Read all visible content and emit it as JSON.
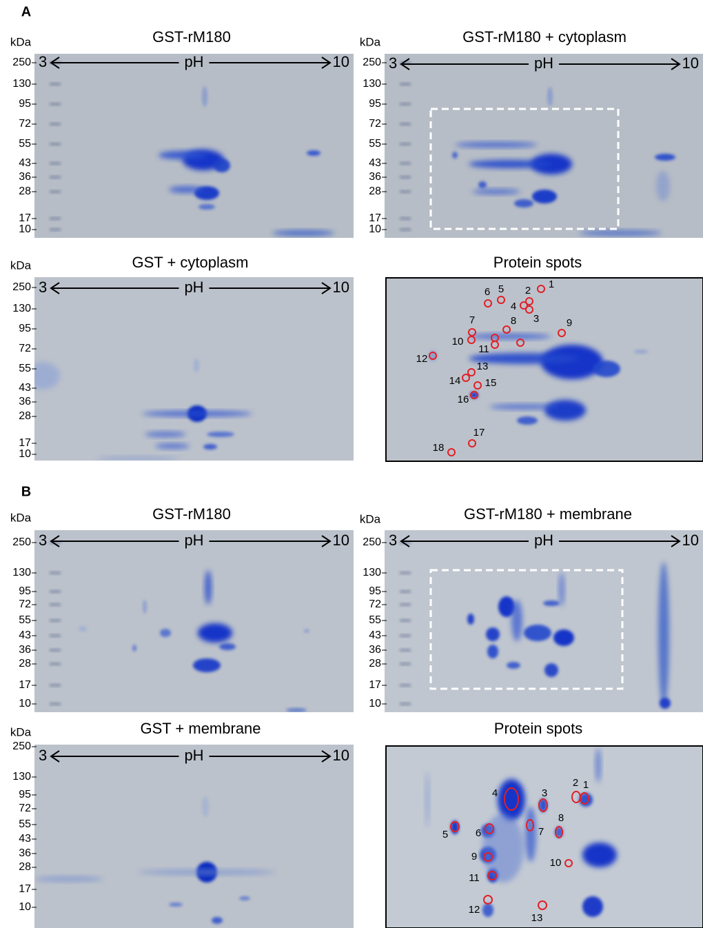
{
  "sections": [
    {
      "label": "A",
      "panels": [
        {
          "title": "GST-rM180",
          "unit": "kDa",
          "markers": [
            250,
            130,
            95,
            72,
            55,
            43,
            36,
            28,
            17,
            10
          ],
          "ph": {
            "low": 3,
            "label": "pH",
            "high": 10
          }
        },
        {
          "title": "GST-rM180 + cytoplasm",
          "unit": "kDa",
          "markers": [
            250,
            130,
            95,
            72,
            55,
            43,
            36,
            28,
            17,
            10
          ],
          "ph": {
            "low": 3,
            "label": "pH",
            "high": 10
          }
        },
        {
          "title": "GST + cytoplasm",
          "unit": "kDa",
          "markers": [
            250,
            130,
            95,
            72,
            55,
            43,
            36,
            28,
            17,
            10
          ],
          "ph": {
            "low": 3,
            "label": "pH",
            "high": 10
          }
        },
        {
          "title": "Protein spots",
          "spots": [
            1,
            2,
            3,
            4,
            5,
            6,
            7,
            8,
            9,
            10,
            11,
            12,
            13,
            14,
            15,
            16,
            17,
            18
          ]
        }
      ]
    },
    {
      "label": "B",
      "panels": [
        {
          "title": "GST-rM180",
          "unit": "kDa",
          "markers": [
            250,
            130,
            95,
            72,
            55,
            43,
            36,
            28,
            17,
            10
          ],
          "ph": {
            "low": 3,
            "label": "pH",
            "high": 10
          }
        },
        {
          "title": "GST-rM180 + membrane",
          "unit": "kDa",
          "markers": [
            250,
            130,
            95,
            72,
            55,
            43,
            36,
            28,
            17,
            10
          ],
          "ph": {
            "low": 3,
            "label": "pH",
            "high": 10
          }
        },
        {
          "title": "GST + membrane",
          "unit": "kDa",
          "markers": [
            250,
            130,
            95,
            72,
            55,
            43,
            36,
            28,
            17,
            10
          ],
          "ph": {
            "low": 3,
            "label": "pH",
            "high": 10
          }
        },
        {
          "title": "Protein spots",
          "spots": [
            1,
            2,
            3,
            4,
            5,
            6,
            7,
            8,
            9,
            10,
            11,
            12,
            13
          ]
        }
      ]
    }
  ]
}
